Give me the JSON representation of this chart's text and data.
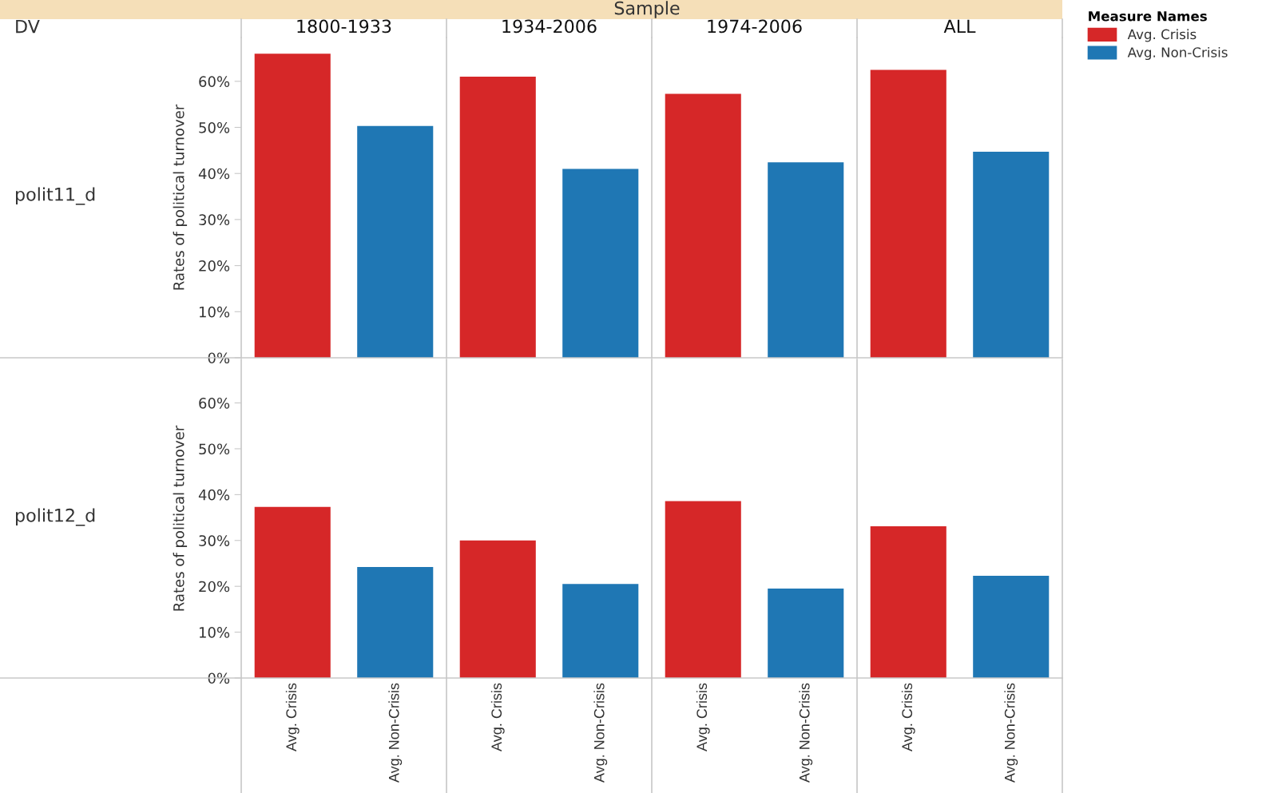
{
  "chart_data": [
    {
      "type": "bar",
      "ylabel": "Rates of political turnover",
      "categories": [
        "1800-1933",
        "1934-2006",
        "1974-2006",
        "ALL"
      ],
      "legend": "right",
      "legend_title": "Measure Names",
      "ylim": [
        0,
        69.5
      ],
      "yticks": [
        {
          "value": 0,
          "label": "0%"
        },
        {
          "value": 10,
          "label": "10%"
        },
        {
          "value": 20,
          "label": "20%"
        },
        {
          "value": 30,
          "label": "30%"
        },
        {
          "value": 40,
          "label": "40%"
        },
        {
          "value": 50,
          "label": "50%"
        },
        {
          "value": 60,
          "label": "60%"
        }
      ],
      "annotations": [
        "Sample",
        "DV",
        "polit11_d"
      ],
      "series": [
        {
          "name": "Avg. Crisis",
          "color": "#d62728",
          "values": [
            66.0,
            61.0,
            57.3,
            62.5
          ]
        },
        {
          "name": "Avg. Non-Crisis",
          "color": "#1f77b4",
          "values": [
            50.3,
            41.0,
            42.4,
            44.7
          ]
        }
      ]
    },
    {
      "type": "bar",
      "ylabel": "Rates of political turnover",
      "categories": [
        null,
        null,
        null,
        null
      ],
      "tick_labels": "y",
      "ylim": [
        0,
        69.5
      ],
      "yticks": [
        {
          "value": 0,
          "label": "0%"
        },
        {
          "value": 10,
          "label": "10%"
        },
        {
          "value": 20,
          "label": "20%"
        },
        {
          "value": 30,
          "label": "30%"
        },
        {
          "value": 40,
          "label": "40%"
        },
        {
          "value": 50,
          "label": "50%"
        },
        {
          "value": 60,
          "label": "60%"
        }
      ],
      "annotations": [
        "polit12_d"
      ],
      "series": [
        {
          "name": "Avg. Crisis",
          "color": "#d62728",
          "values": [
            37.3,
            30.0,
            38.6,
            33.1
          ]
        },
        {
          "name": "Avg. Non-Crisis",
          "color": "#1f77b4",
          "values": [
            24.2,
            20.5,
            19.5,
            22.3
          ]
        }
      ]
    }
  ]
}
